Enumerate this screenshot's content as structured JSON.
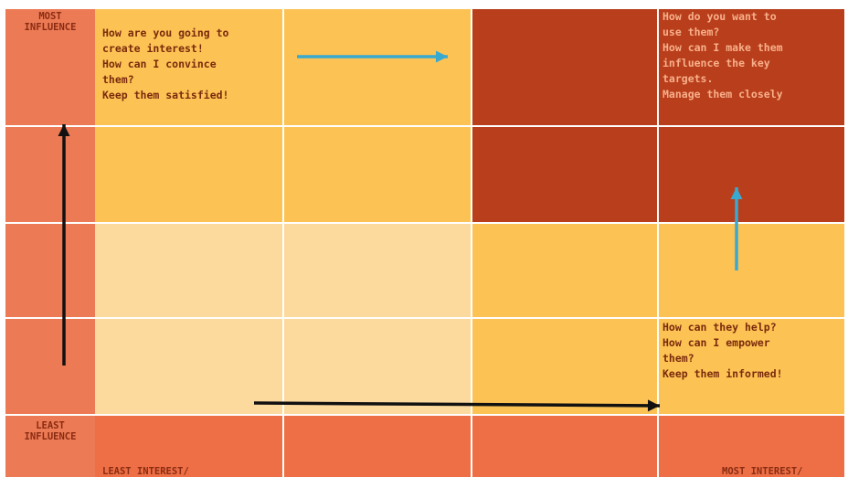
{
  "colors": {
    "label_column": "#ec7a55",
    "pale": "#fcd99d",
    "yellow": "#fcc354",
    "dark": "#b93e1c",
    "bottom_band": "#ee6f45",
    "grid_line": "#ffffff",
    "arrow_blue": "#3aa9cf",
    "arrow_black": "#111111",
    "text_dark": "#7a2a0d",
    "text_light": "#f7b08a"
  },
  "grid_colors": [
    [
      "yellow",
      "yellow",
      "dark",
      "dark"
    ],
    [
      "yellow",
      "yellow",
      "dark",
      "dark"
    ],
    [
      "pale",
      "pale",
      "yellow",
      "yellow"
    ],
    [
      "pale",
      "pale",
      "yellow",
      "yellow"
    ],
    [
      "bottom_band",
      "bottom_band",
      "bottom_band",
      "bottom_band"
    ]
  ],
  "axis": {
    "top_left": "MOST\nINFLUENCE",
    "bottom_left": "LEAST\nINFLUENCE",
    "bottom_start": "LEAST INTEREST/",
    "bottom_end": "MOST INTEREST/"
  },
  "quadrants": {
    "top_left": "How are you going to\ncreate interest!\nHow can I convince\nthem?\nKeep them satisfied!",
    "top_right": "How do you want to\nuse them?\nHow can I make them\ninfluence the key\ntargets.\nManage them closely",
    "bottom_right": "How can they help?\nHow can I empower\nthem?\nKeep them informed!"
  },
  "arrows": [
    {
      "name": "arrow-right-blue-icon",
      "color": "arrow_blue",
      "direction": "right"
    },
    {
      "name": "arrow-up-blue-icon",
      "color": "arrow_blue",
      "direction": "up"
    },
    {
      "name": "arrow-up-black-icon",
      "color": "arrow_black",
      "direction": "up"
    },
    {
      "name": "arrow-right-black-icon",
      "color": "arrow_black",
      "direction": "right"
    }
  ]
}
